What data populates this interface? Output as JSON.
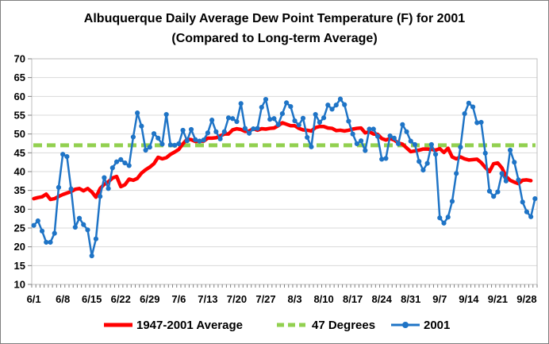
{
  "chart_data": {
    "type": "line",
    "title": "Albuquerque Daily Average Dew Point Temperature (F) for 2001",
    "subtitle": "(Compared to Long-term Average)",
    "xlabel": "",
    "ylabel": "",
    "ylim": [
      10,
      70
    ],
    "yticks": [
      "10",
      "15",
      "20",
      "25",
      "30",
      "35",
      "40",
      "45",
      "50",
      "55",
      "60",
      "65",
      "70"
    ],
    "xtick_labels": [
      "6/1",
      "6/8",
      "6/15",
      "6/22",
      "6/29",
      "7/6",
      "7/13",
      "7/20",
      "7/27",
      "8/3",
      "8/10",
      "8/17",
      "8/24",
      "8/31",
      "9/7",
      "9/14",
      "9/21",
      "9/28"
    ],
    "grid": true,
    "legend_position": "bottom",
    "series": [
      {
        "name": "1947-2001 Average",
        "color": "#ff0000",
        "style": "solid",
        "values": [
          32.8,
          33.1,
          33.3,
          34.0,
          32.6,
          32.8,
          33.4,
          33.9,
          34.3,
          34.7,
          35.3,
          35.5,
          34.9,
          35.5,
          34.6,
          33.2,
          35.5,
          36.6,
          37.3,
          38.3,
          38.7,
          36.0,
          36.5,
          38.0,
          37.7,
          38.2,
          39.6,
          40.5,
          41.2,
          42.1,
          43.8,
          43.4,
          43.7,
          44.6,
          45.2,
          45.9,
          47.4,
          48.6,
          48.5,
          48.0,
          48.1,
          48.1,
          48.9,
          48.9,
          49.0,
          49.5,
          50.0,
          50.0,
          51.1,
          51.4,
          51.2,
          50.7,
          50.8,
          51.4,
          51.0,
          51.4,
          51.3,
          51.5,
          51.6,
          52.2,
          53.0,
          52.6,
          52.2,
          52.2,
          51.5,
          51.1,
          51.0,
          50.8,
          51.7,
          52.0,
          52.0,
          51.6,
          51.5,
          50.9,
          51.0,
          50.8,
          51.0,
          51.3,
          51.5,
          51.6,
          50.3,
          50.6,
          50.0,
          49.9,
          48.8,
          48.4,
          48.8,
          48.4,
          47.6,
          47.3,
          46.3,
          45.3,
          45.5,
          45.7,
          46.0,
          46.0,
          45.9,
          45.7,
          46.1,
          45.1,
          46.2,
          43.9,
          43.4,
          43.9,
          43.4,
          43.1,
          43.2,
          43.3,
          42.4,
          41.1,
          40.0,
          42.1,
          42.3,
          41.0,
          38.7,
          37.7,
          37.2,
          36.8,
          37.7,
          37.8,
          37.6
        ]
      },
      {
        "name": "47 Degrees",
        "color": "#92d050",
        "style": "dashed",
        "values": [
          47,
          47
        ]
      },
      {
        "name": "2001",
        "color": "#1f74c6",
        "style": "solid-marker",
        "values": [
          25.7,
          26.9,
          24.2,
          21.2,
          21.2,
          23.6,
          35.8,
          44.6,
          44.0,
          35.4,
          25.2,
          27.6,
          25.9,
          24.5,
          17.6,
          22.1,
          33.4,
          38.4,
          35.5,
          41.0,
          42.6,
          43.2,
          42.3,
          41.6,
          49.2,
          55.6,
          52.1,
          45.7,
          46.5,
          50.1,
          48.9,
          47.3,
          55.2,
          47.1,
          47.0,
          47.4,
          51.0,
          48.2,
          51.2,
          48.5,
          48.1,
          48.4,
          50.3,
          53.7,
          50.6,
          48.7,
          50.6,
          54.3,
          54.1,
          53.3,
          58.1,
          51.5,
          50.2,
          51.4,
          51.5,
          57.1,
          59.2,
          53.9,
          54.1,
          52.5,
          55.4,
          58.3,
          57.3,
          53.5,
          52.4,
          54.2,
          49.1,
          46.6,
          55.2,
          53.1,
          54.3,
          57.7,
          56.6,
          57.7,
          59.3,
          57.8,
          53.4,
          50.0,
          47.4,
          48.2,
          45.6,
          51.3,
          51.3,
          49.4,
          43.3,
          43.5,
          49.5,
          48.9,
          47.4,
          52.5,
          50.6,
          48.1,
          47.2,
          42.7,
          40.4,
          42.2,
          47.2,
          44.6,
          27.7,
          26.3,
          27.9,
          32.1,
          39.5,
          46.5,
          55.4,
          58.2,
          57.2,
          53.0,
          53.1,
          44.9,
          34.8,
          33.4,
          34.6,
          39.5,
          37.5,
          45.7,
          42.5,
          37.8,
          31.9,
          29.3,
          28.0,
          32.8
        ]
      }
    ]
  }
}
